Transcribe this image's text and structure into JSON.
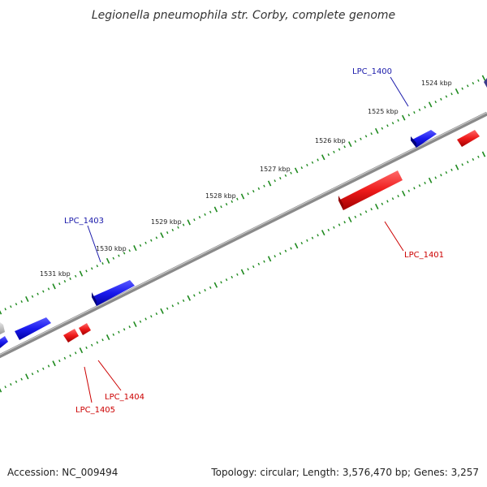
{
  "title": "Legionella pneumophila str. Corby, complete genome",
  "footer": {
    "accession": "Accession: NC_009494",
    "summary": "Topology: circular; Length: 3,576,470 bp; Genes: 3,257"
  },
  "colors": {
    "backbone": "#7a7a7a",
    "ticks": "#1f8a1f",
    "forward_gene": "#1a1aee",
    "reverse_gene": "#ee1a1a",
    "forward_label": "#1a1aaa",
    "reverse_label": "#cc0000",
    "unknown_gene": "#c8c8c8"
  },
  "ruler": [
    {
      "label": "1524 kbp"
    },
    {
      "label": "1525 kbp"
    },
    {
      "label": "1526 kbp"
    },
    {
      "label": "1527 kbp"
    },
    {
      "label": "1528 kbp"
    },
    {
      "label": "1529 kbp"
    },
    {
      "label": "1530 kbp"
    },
    {
      "label": "1531 kbp"
    }
  ],
  "gene_labels": [
    {
      "id": "LPC_1400",
      "strand": "forward"
    },
    {
      "id": "LPC_1403",
      "strand": "forward"
    },
    {
      "id": "LPC_1401",
      "strand": "reverse"
    },
    {
      "id": "LPC_1404",
      "strand": "reverse"
    },
    {
      "id": "LPC_1405",
      "strand": "reverse"
    }
  ]
}
